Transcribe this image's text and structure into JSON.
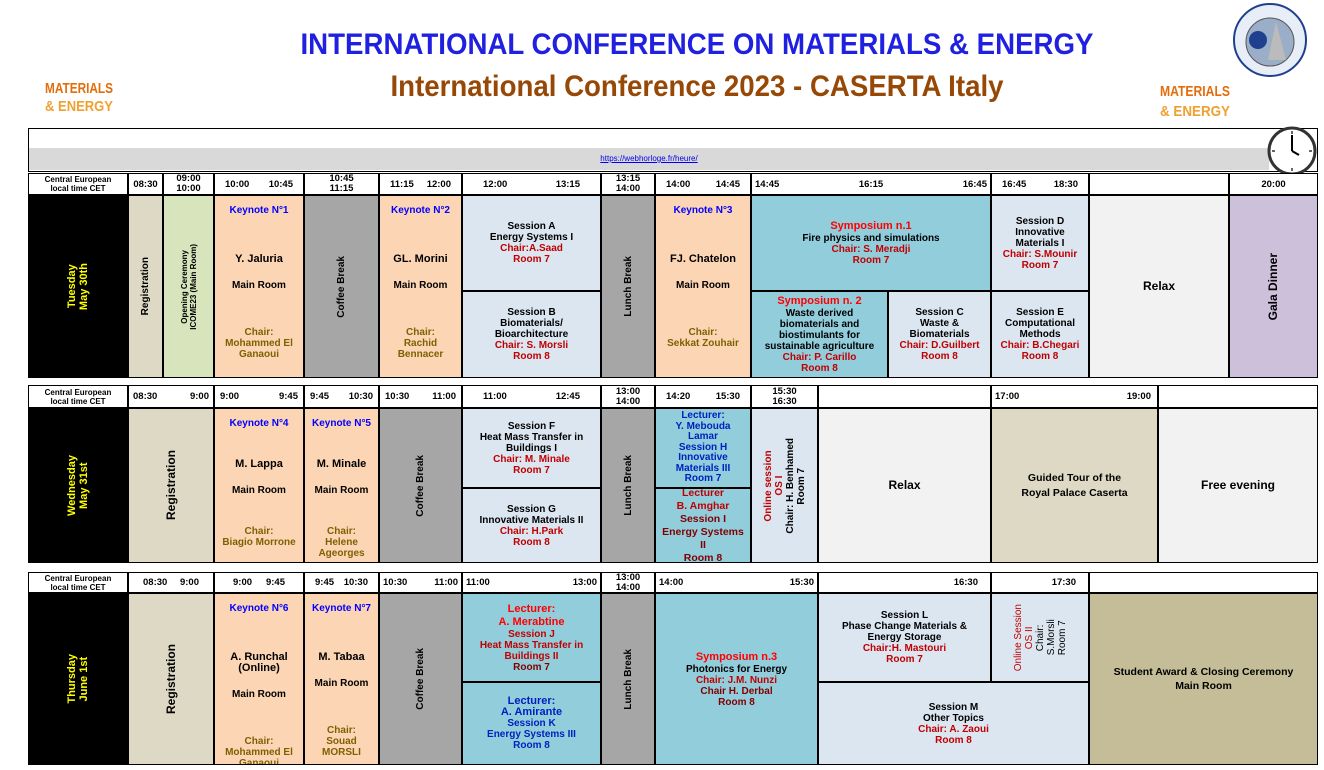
{
  "header": {
    "title": "INTERNATIONAL CONFERENCE ON MATERIALS & ENERGY",
    "subtitle": "International Conference 2023 - CASERTA Italy",
    "logo_text": [
      "MATERIALS",
      "& ENERGY"
    ],
    "link": "https://webhorloge.fr/heure/"
  },
  "days": [
    {
      "times": [
        [
          "Central European",
          "local time CET"
        ],
        [
          "08:30"
        ],
        [
          "09:00",
          "10:00"
        ],
        [
          "10:00",
          "10:45"
        ],
        [
          "10:45",
          "11:15"
        ],
        [
          "11:15",
          "12:00"
        ],
        [
          "12:00",
          "13:15"
        ],
        [
          "13:15",
          "14:00"
        ],
        [
          "14:00",
          "14:45"
        ],
        [
          "14:45",
          "16:15",
          "16:45"
        ],
        [
          "16:45",
          "18:30"
        ],
        [
          "20:00"
        ]
      ],
      "cells": [
        [
          "Tuesday",
          "May 30th"
        ],
        [
          "Registration"
        ],
        [
          "Opening Ceremony",
          "ICOME23 (Main Room)"
        ],
        [
          "Keynote N°1",
          "Y. Jaluria",
          "Main Room",
          "Chair:",
          "Mohammed El",
          "Ganaoui"
        ],
        [
          "Coffee Break"
        ],
        [
          "Keynote N°2",
          "GL. Morini",
          "Main Room",
          "Chair:",
          "Rachid",
          "Bennacer"
        ],
        [
          "Session A",
          "Energy Systems I",
          "Chair:A.Saad",
          "Room 7"
        ],
        [
          "Session B",
          "Biomaterials/",
          "Bioarchitecture",
          "Chair: S. Morsli",
          "Room 8"
        ],
        [
          "Lunch Break"
        ],
        [
          "Keynote N°3",
          "FJ. Chatelon",
          "Main Room",
          "Chair:",
          "Sekkat Zouhair"
        ],
        [
          "Symposium n.1",
          "Fire physics and simulations",
          "Chair: S. Meradji",
          "Room 7"
        ],
        [
          "Symposium n. 2",
          "Waste derived",
          "biomaterials and",
          "biostimulants for",
          "sustainable agriculture",
          "Chair: P. Carillo",
          "Room 8"
        ],
        [
          "Session C",
          "Waste &",
          "Biomaterials",
          "Chair: D.Guilbert",
          "Room 8"
        ],
        [
          "Session D",
          "Innovative",
          "Materials I",
          "Chair: S.Mounir",
          "Room 7"
        ],
        [
          "Session E",
          "Computational",
          "Methods",
          "Chair: B.Chegari",
          "Room 8"
        ],
        [
          "Relax"
        ],
        [
          "Gala Dinner"
        ]
      ]
    },
    {
      "times": [
        [
          "Central European",
          "local time CET"
        ],
        [
          "08:30",
          "9:00"
        ],
        [
          "9:00",
          "9:45"
        ],
        [
          "9:45",
          "10:30"
        ],
        [
          "10:30",
          "11:00"
        ],
        [
          "11:00",
          "12:45"
        ],
        [
          "13:00",
          "14:00"
        ],
        [
          "14:20",
          "15:30"
        ],
        [
          "15:30",
          "16:30"
        ],
        [
          "17:00",
          "19:00"
        ]
      ],
      "cells": [
        [
          "Wednesday",
          "May 31st"
        ],
        [
          "Registration"
        ],
        [
          "Keynote N°4",
          "M. Lappa",
          "Main Room",
          "Chair:",
          "Biagio Morrone"
        ],
        [
          "Keynote N°5",
          "M. Minale",
          "Main Room",
          "Chair:",
          "Helene",
          "Ageorges"
        ],
        [
          "Coffee Break"
        ],
        [
          "Session F",
          "Heat Mass Transfer in",
          "Buildings I",
          "Chair: M. Minale",
          "Room 7"
        ],
        [
          "Session G",
          "Innovative Materials II",
          "Chair:  H.Park",
          "Room 8"
        ],
        [
          "Lunch Break"
        ],
        [
          "Lecturer:",
          "Y. Mebouda",
          "Lamar",
          "Session H",
          "Innovative",
          "Materials III",
          "Room 7"
        ],
        [
          "Lecturer",
          "B. Amghar",
          "Session I",
          "Energy Systems",
          "II",
          "Room 8"
        ],
        [
          "Online session",
          "OS I",
          "Chair: H. Benhamed",
          "Room 7"
        ],
        [
          "Relax"
        ],
        [
          "Guided Tour of the",
          "Royal Palace Caserta"
        ],
        [
          "Free evening"
        ]
      ]
    },
    {
      "times": [
        [
          "Central European",
          "local time CET"
        ],
        [
          "08:30",
          "9:00"
        ],
        [
          "9:00",
          "9:45"
        ],
        [
          "9:45",
          "10:30"
        ],
        [
          "10:30",
          "11:00"
        ],
        [
          "11:00",
          "13:00"
        ],
        [
          "13:00",
          "14:00"
        ],
        [
          "14:00",
          "15:30"
        ],
        [
          "16:30"
        ],
        [
          "17:30"
        ]
      ],
      "cells": [
        [
          "Thursday",
          "June 1st"
        ],
        [
          "Registration"
        ],
        [
          "Keynote N°6",
          "A. Runchal",
          "(Online)",
          "Main Room",
          "Chair:",
          "Mohammed El",
          "Ganaoui"
        ],
        [
          "Keynote N°7",
          "M. Tabaa",
          "Main Room",
          "Chair:",
          "Souad",
          "MORSLI"
        ],
        [
          "Coffee Break"
        ],
        [
          "Lecturer:",
          "A. Merabtine",
          "Session J",
          "Heat Mass Transfer in",
          "Buildings II",
          "Room 7"
        ],
        [
          "Lecturer:",
          "A. Amirante",
          "Session K",
          "Energy Systems III",
          "Room 8"
        ],
        [
          "Lunch Break"
        ],
        [
          "Symposium n.3",
          "Photonics for Energy",
          "Chair: J.M. Nunzi",
          "Chair H. Derbal",
          "Room 8"
        ],
        [
          "Session L",
          "Phase Change Materials &",
          "Energy Storage",
          "Chair:H. Mastouri",
          "Room 7"
        ],
        [
          "Online Session",
          "OS II",
          "Chair:",
          "S.Morsli",
          "Room 7"
        ],
        [
          "Session M",
          "Other Topics",
          "Chair: A. Zaoui",
          "Room 8"
        ],
        [
          "Student Award & Closing Ceremony",
          "Main Room"
        ]
      ]
    }
  ]
}
